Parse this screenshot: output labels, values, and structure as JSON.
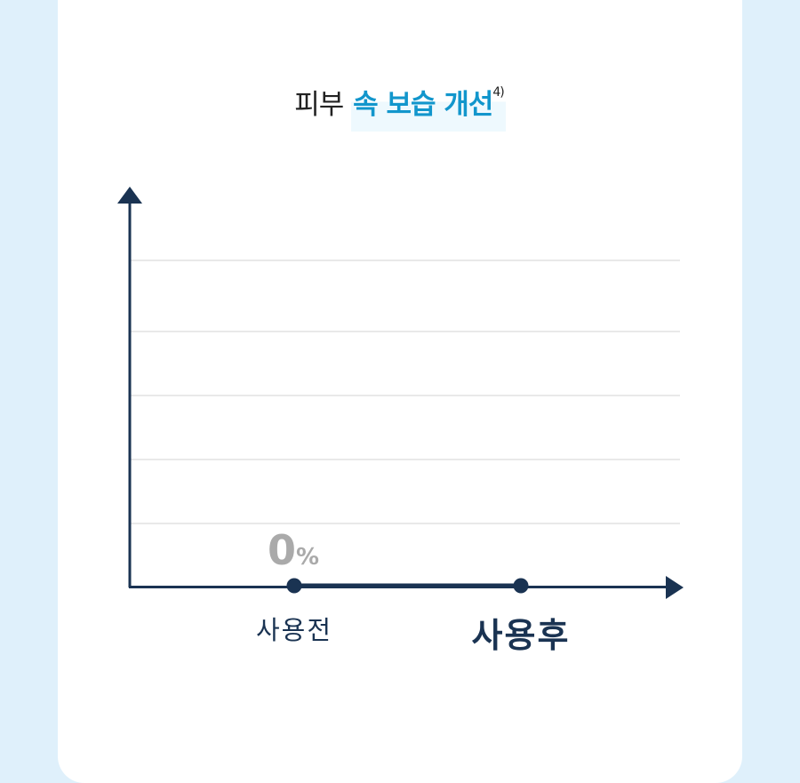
{
  "title": {
    "prefix": "피부",
    "highlight": "속 보습 개선",
    "footnote": "4)"
  },
  "colors": {
    "background": "#dff0fb",
    "axis": "#1a3352",
    "highlight": "#1296cc",
    "grid": "#e2e2e2",
    "value_label": "#aaaaaa"
  },
  "chart_data": {
    "type": "line",
    "title": "피부 속 보습 개선",
    "categories": [
      "사용전",
      "사용후"
    ],
    "values": [
      0,
      0
    ],
    "value_labels": [
      {
        "value": "0",
        "unit": "%"
      }
    ],
    "grid": true,
    "gridlines": 5
  }
}
